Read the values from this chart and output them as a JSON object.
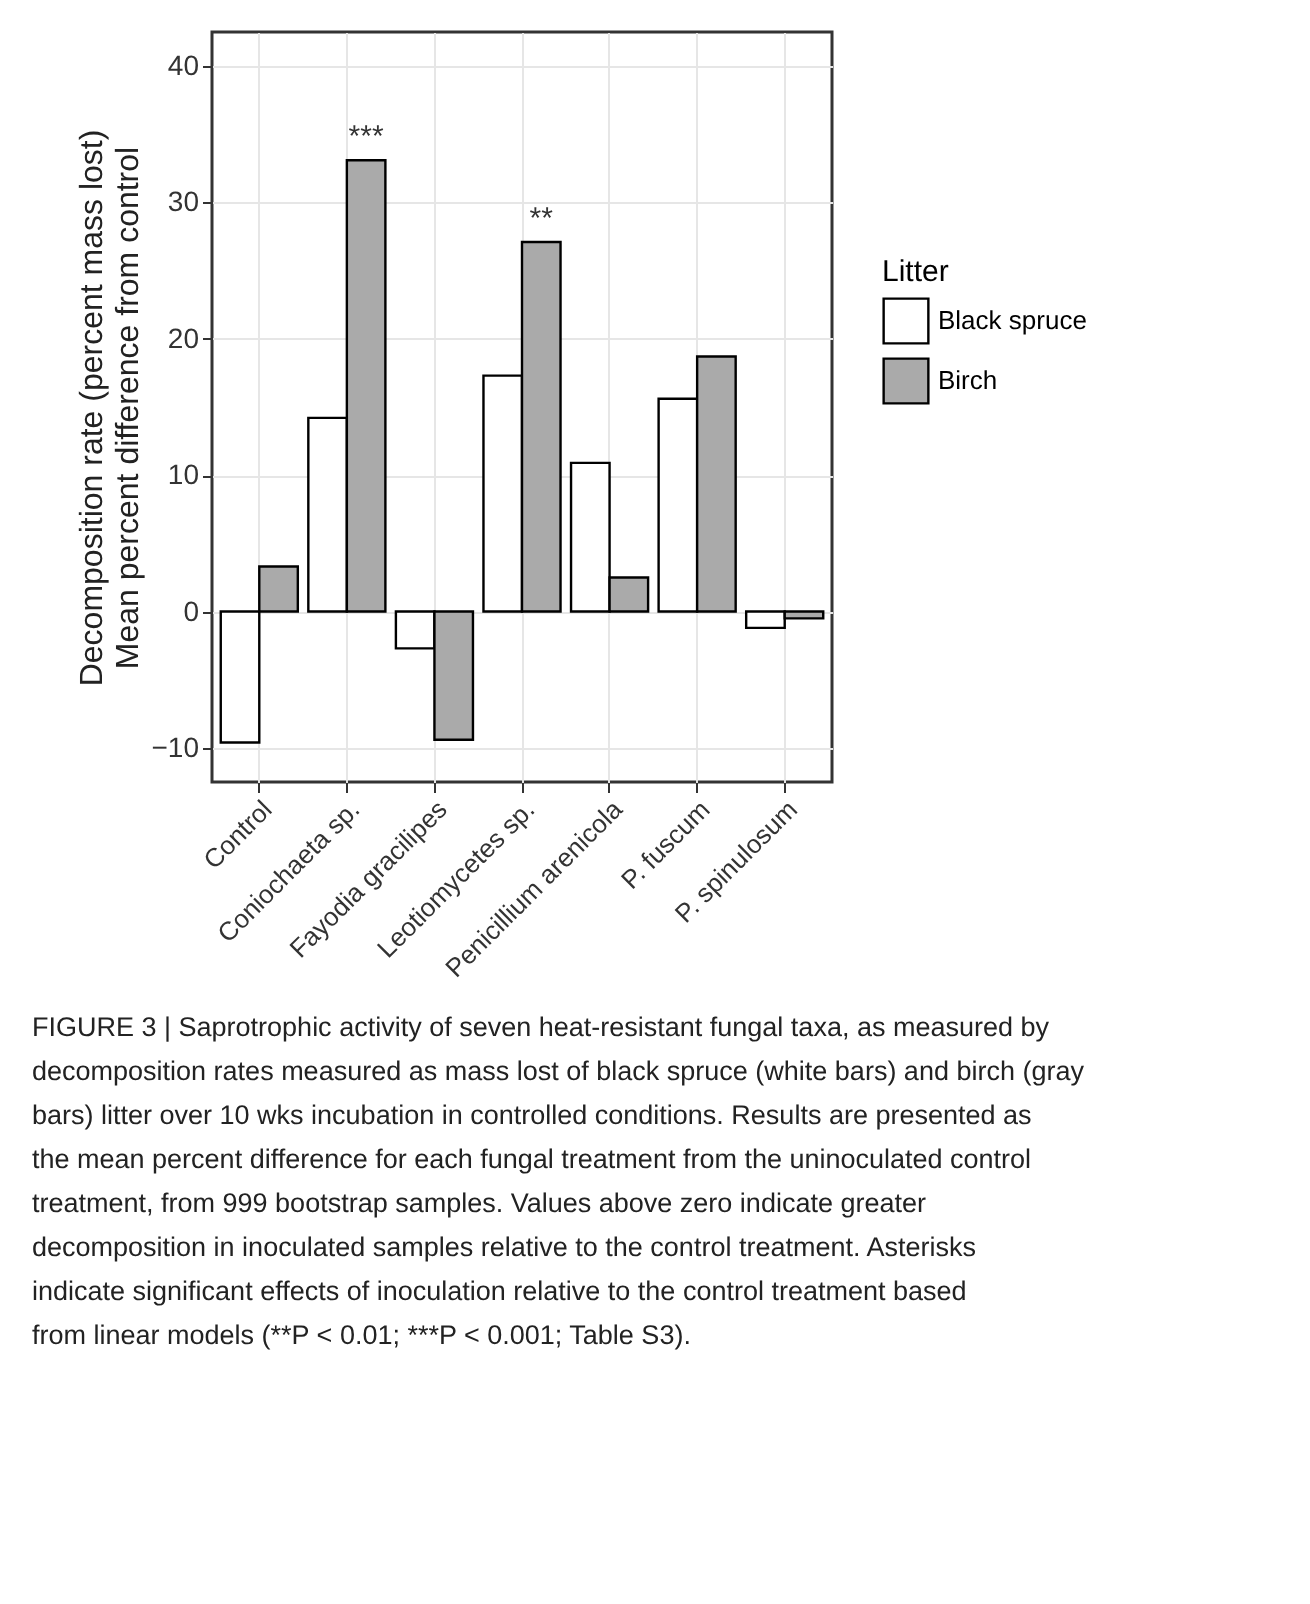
{
  "chart_data": {
    "type": "bar",
    "categories": [
      "Control",
      "Coniochaeta sp.",
      "Fayodia gracilipes",
      "Leotiomycetes sp.",
      "Penicillium arenicola",
      "P. fuscum",
      "P. spinulosum"
    ],
    "series": [
      {
        "name": "Black spruce",
        "color": "#ffffff",
        "values": [
          -9.6,
          14.2,
          -2.7,
          17.3,
          10.9,
          15.6,
          -1.2
        ]
      },
      {
        "name": "Birch",
        "color": "#aaaaaa",
        "values": [
          3.3,
          33.1,
          -9.4,
          27.1,
          2.5,
          18.7,
          -0.5
        ],
        "value_labels": [
          null,
          "***",
          null,
          "**",
          null,
          null,
          null
        ]
      }
    ],
    "ylabel": "Decomposition rate (percent mass lost)\nMean percent difference from control",
    "legend_title": "Litter",
    "ylim": [
      -12.5,
      42.5
    ],
    "yticks": [
      -10,
      0,
      10,
      20,
      30,
      40
    ],
    "grid": true,
    "legend": "right",
    "annotations": [
      "FIGURE 3 | Saprotrophic activity of seven heat-resistant fungal taxa, as measured by decomposition rates measured as mass lost of black spruce (white bars) and birch (gray bars) litter over 10 wks incubation in controlled conditions. Results are presented as the mean percent difference for each fungal treatment from the uninoculated control treatment, from 999 bootstrap samples. Values above zero indicate greater decomposition in inoculated samples relative to the control treatment. Asterisks indicate significant effects of inoculation relative to the control treatment based from linear models (**P < 0.01; ***P < 0.001; Table S3)."
    ]
  }
}
